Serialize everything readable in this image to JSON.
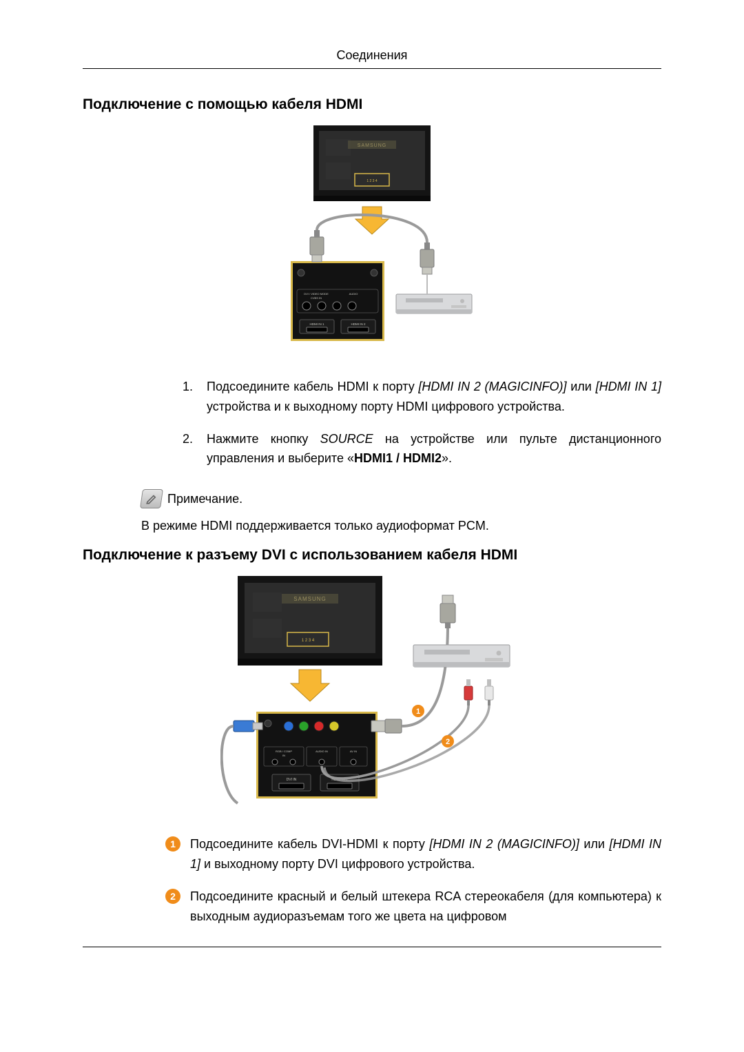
{
  "header": {
    "title": "Соединения"
  },
  "section1": {
    "title": "Подключение с помощью кабеля HDMI",
    "diagram": {
      "monitor": {
        "bezel_color": "#141414",
        "screen_color": "#2c2c2c",
        "brand_strip_color": "#5a5640",
        "brand_text": "SAMSUNG",
        "highlight_color": "#d8b84a"
      },
      "arrow_color": "#f7b733",
      "cable_color": "#9a9a9a",
      "connector_casing": "#a7a79f",
      "connector_tip": "#c8c8c0",
      "panel": {
        "border_color": "#d8b84a",
        "bg_color": "#121212",
        "port_row_bg": "#222222",
        "label_color": "#c8c8c0",
        "port_labels_top": "DVI / VIDEO MODE\nCVBS IN",
        "port_labels_top_right": "AUDIO",
        "bottom_left": "HDMI IN 1",
        "bottom_right": "HDMI IN 2"
      },
      "player": {
        "body_color": "#d9dadc",
        "shadow_color": "#bcbdbf",
        "tray_color": "#b9babc"
      }
    },
    "steps": [
      {
        "pre": "Подсоедините кабель HDMI к порту ",
        "em1": "[HDMI IN 2 (MAGICINFO)]",
        "mid": " или ",
        "em2": "[HDMI IN 1]",
        "post": " устройства и к выходному порту HDMI цифрового устройства."
      },
      {
        "pre": "Нажмите кнопку ",
        "em1": "SOURCE",
        "mid": " на устройстве или пульте дистанционного управления и выберите «",
        "bold": "HDMI1 / HDMI2",
        "post": "»."
      }
    ],
    "note": {
      "label": "Примечание.",
      "body": "В режиме HDMI поддерживается только аудиоформат PCM."
    }
  },
  "section2": {
    "title": "Подключение к разъему DVI с использованием кабеля HDMI",
    "diagram": {
      "monitor": {
        "bezel_color": "#141414",
        "screen_color": "#2c2c2c",
        "brand_strip_color": "#5a5640",
        "brand_text": "SAMSUNG",
        "highlight_color": "#d8b84a"
      },
      "top_connector": {
        "casing": "#a7a79f",
        "tip": "#c8c8c0"
      },
      "callout_colors": {
        "1": "#f08c1a",
        "2": "#f08c1a"
      },
      "panel": {
        "border_color": "#d8b84a",
        "bg_color": "#121212",
        "rgb_dots": [
          "#2a6fd6",
          "#2aa22a",
          "#d62a2a",
          "#d6c72a"
        ],
        "vga_color": "#3a7bd5",
        "hdmi_plug_color": "#c8c8c0",
        "label_row1_left": "RGB / COMPONENT IN",
        "label_row1_mid": "AUDIO IN",
        "label_row1_right": "AV IN",
        "bottom_left": "DVI IN",
        "bottom_right": "HDMI IN 1"
      },
      "player": {
        "body_color": "#d9dadc",
        "tray_color": "#b9babc"
      },
      "rca": {
        "red": "#d63a3a",
        "white": "#e8e8e8",
        "barrel": "#bfbfbf"
      },
      "cable_top_color": "#9a9a9a",
      "cable_audio_color": "#9a9a9a"
    },
    "callouts": [
      {
        "num": "1",
        "num_bg": "#f08c1a",
        "pre": "Подсоедините кабель DVI-HDMI к порту ",
        "em1": "[HDMI IN 2 (MAGICINFO)]",
        "mid": " или ",
        "em2": "[HDMI IN 1]",
        "post": " и выходному порту DVI цифрового устройства."
      },
      {
        "num": "2",
        "num_bg": "#f08c1a",
        "text": "Подсоедините красный и белый штекера RCA стереокабеля (для компьютера) к выходным аудиоразъемам того же цвета на цифровом"
      }
    ]
  }
}
